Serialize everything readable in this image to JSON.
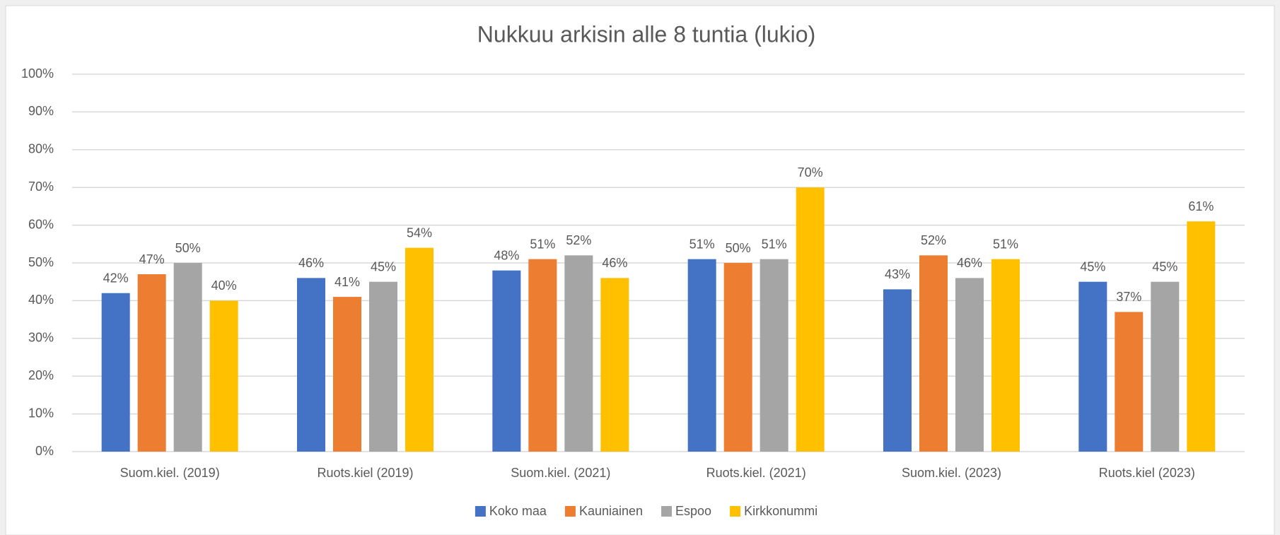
{
  "chart_data": {
    "type": "bar",
    "title": "Nukkuu arkisin alle 8 tuntia (lukio)",
    "categories": [
      "Suom.kiel. (2019)",
      "Ruots.kiel (2019)",
      "Suom.kiel. (2021)",
      "Ruots.kiel. (2021)",
      "Suom.kiel. (2023)",
      "Ruots.kiel (2023)"
    ],
    "series": [
      {
        "name": "Koko maa",
        "color": "#4472c4",
        "values": [
          42,
          46,
          48,
          51,
          43,
          45
        ],
        "value_labels": [
          "42%",
          "46%",
          "48%",
          "51%",
          "43%",
          "45%"
        ]
      },
      {
        "name": "Kauniainen",
        "color": "#ed7d31",
        "values": [
          47,
          41,
          51,
          50,
          52,
          37
        ],
        "value_labels": [
          "47%",
          "41%",
          "51%",
          "50%",
          "52%",
          "37%"
        ]
      },
      {
        "name": "Espoo",
        "color": "#a5a5a5",
        "values": [
          50,
          45,
          52,
          51,
          46,
          45
        ],
        "value_labels": [
          "50%",
          "45%",
          "52%",
          "51%",
          "46%",
          "45%"
        ]
      },
      {
        "name": "Kirkkonummi",
        "color": "#ffc000",
        "values": [
          40,
          54,
          46,
          70,
          51,
          61
        ],
        "value_labels": [
          "40%",
          "54%",
          "46%",
          "70%",
          "51%",
          "61%"
        ]
      }
    ],
    "ylim": [
      0,
      100
    ],
    "yticks": [
      {
        "value": 0,
        "label": "0%"
      },
      {
        "value": 10,
        "label": "10%"
      },
      {
        "value": 20,
        "label": "20%"
      },
      {
        "value": 30,
        "label": "30%"
      },
      {
        "value": 40,
        "label": "40%"
      },
      {
        "value": 50,
        "label": "50%"
      },
      {
        "value": 60,
        "label": "60%"
      },
      {
        "value": 70,
        "label": "70%"
      },
      {
        "value": 80,
        "label": "80%"
      },
      {
        "value": 90,
        "label": "90%"
      },
      {
        "value": 100,
        "label": "100%"
      }
    ],
    "grid": true,
    "legend": "bottom"
  }
}
